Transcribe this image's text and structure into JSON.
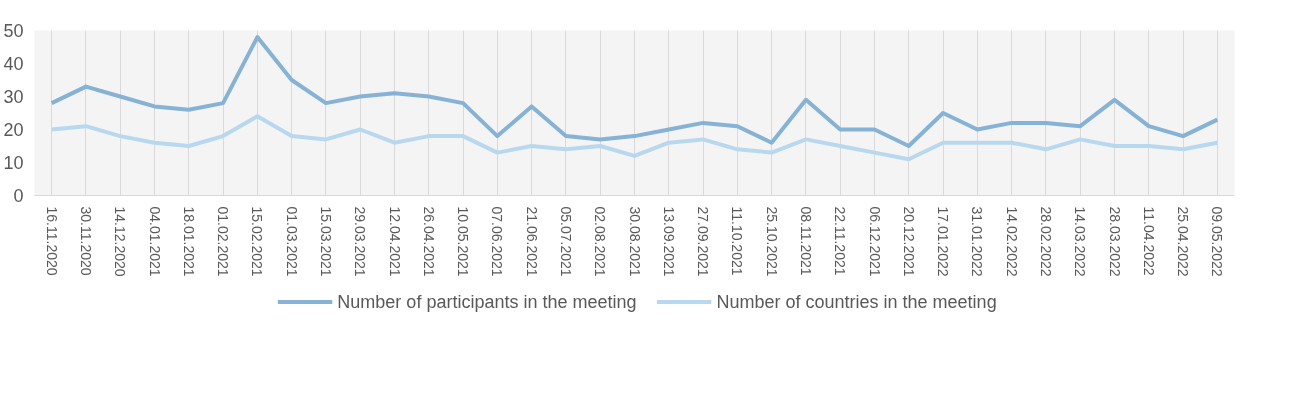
{
  "chart_data": {
    "type": "line",
    "categories": [
      "16.11.2020",
      "30.11.2020",
      "14.12.2020",
      "04.01.2021",
      "18.01.2021",
      "01.02.2021",
      "15.02.2021",
      "01.03.2021",
      "15.03.2021",
      "29.03.2021",
      "12.04.2021",
      "26.04.2021",
      "10.05.2021",
      "07.06.2021",
      "21.06.2021",
      "05.07.2021",
      "02.08.2021",
      "30.08.2021",
      "13.09.2021",
      "27.09.2021",
      "11.10.2021",
      "25.10.2021",
      "08.11.2021",
      "22.11.2021",
      "06.12.2021",
      "20.12.2021",
      "17.01.2022",
      "31.01.2022",
      "14.02.2022",
      "28.02.2022",
      "14.03.2022",
      "28.03.2022",
      "11.04.2022",
      "25.04.2022",
      "09.05.2022"
    ],
    "series": [
      {
        "name": "Number of participants in the meeting",
        "color": "#86b2d6",
        "values": [
          28,
          33,
          30,
          27,
          26,
          28,
          48,
          35,
          28,
          30,
          31,
          30,
          28,
          18,
          27,
          18,
          17,
          18,
          20,
          22,
          21,
          16,
          29,
          20,
          20,
          15,
          25,
          20,
          22,
          22,
          21,
          29,
          21,
          18,
          23
        ]
      },
      {
        "name": "Number of countries in the meeting",
        "color": "#b8d8f0",
        "values": [
          20,
          21,
          18,
          16,
          15,
          18,
          24,
          18,
          17,
          20,
          16,
          18,
          18,
          13,
          15,
          14,
          15,
          12,
          16,
          17,
          14,
          13,
          17,
          15,
          13,
          11,
          16,
          16,
          16,
          14,
          17,
          15,
          15,
          14,
          16
        ]
      }
    ],
    "ylim": [
      0,
      50
    ],
    "yticks": [
      0,
      10,
      20,
      30,
      40,
      50
    ],
    "grid": "x",
    "legend": "bottom",
    "marker": "none",
    "line_style": "solid"
  }
}
